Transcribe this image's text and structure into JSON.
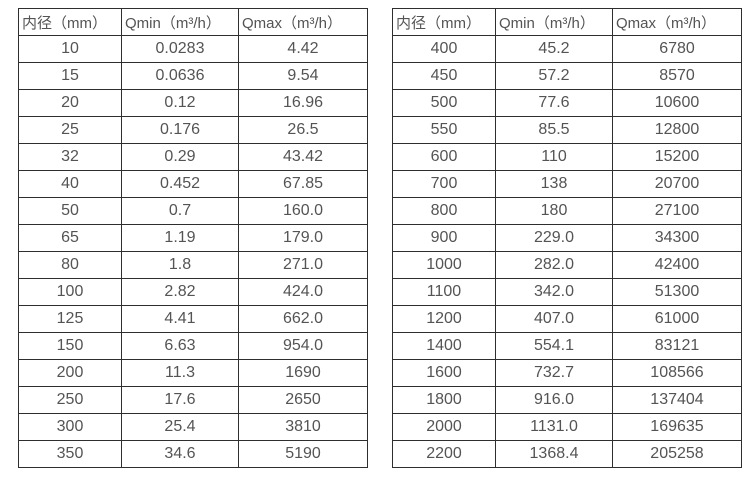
{
  "colors": {
    "background": "#ffffff",
    "border": "#2e2e2e",
    "text": "#545454"
  },
  "tables": [
    {
      "name": "flow-rate-table-small-diameters",
      "headers": [
        "内径（mm）",
        "Qmin（m³/h）",
        "Qmax（m³/h）"
      ],
      "rows": [
        [
          "10",
          "0.0283",
          "4.42"
        ],
        [
          "15",
          "0.0636",
          "9.54"
        ],
        [
          "20",
          "0.12",
          "16.96"
        ],
        [
          "25",
          "0.176",
          "26.5"
        ],
        [
          "32",
          "0.29",
          "43.42"
        ],
        [
          "40",
          "0.452",
          "67.85"
        ],
        [
          "50",
          "0.7",
          "160.0"
        ],
        [
          "65",
          "1.19",
          "179.0"
        ],
        [
          "80",
          "1.8",
          "271.0"
        ],
        [
          "100",
          "2.82",
          "424.0"
        ],
        [
          "125",
          "4.41",
          "662.0"
        ],
        [
          "150",
          "6.63",
          "954.0"
        ],
        [
          "200",
          "11.3",
          "1690"
        ],
        [
          "250",
          "17.6",
          "2650"
        ],
        [
          "300",
          "25.4",
          "3810"
        ],
        [
          "350",
          "34.6",
          "5190"
        ]
      ]
    },
    {
      "name": "flow-rate-table-large-diameters",
      "headers": [
        "内径（mm）",
        "Qmin（m³/h）",
        "Qmax（m³/h）"
      ],
      "rows": [
        [
          "400",
          "45.2",
          "6780"
        ],
        [
          "450",
          "57.2",
          "8570"
        ],
        [
          "500",
          "77.6",
          "10600"
        ],
        [
          "550",
          "85.5",
          "12800"
        ],
        [
          "600",
          "110",
          "15200"
        ],
        [
          "700",
          "138",
          "20700"
        ],
        [
          "800",
          "180",
          "27100"
        ],
        [
          "900",
          "229.0",
          "34300"
        ],
        [
          "1000",
          "282.0",
          "42400"
        ],
        [
          "1100",
          "342.0",
          "51300"
        ],
        [
          "1200",
          "407.0",
          "61000"
        ],
        [
          "1400",
          "554.1",
          "83121"
        ],
        [
          "1600",
          "732.7",
          "108566"
        ],
        [
          "1800",
          "916.0",
          "137404"
        ],
        [
          "2000",
          "1131.0",
          "169635"
        ],
        [
          "2200",
          "1368.4",
          "205258"
        ]
      ]
    }
  ]
}
